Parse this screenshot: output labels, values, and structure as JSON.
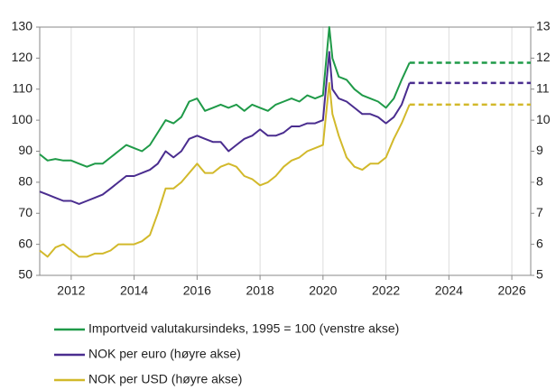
{
  "chart_data": {
    "type": "line",
    "x": [
      2011,
      2011.25,
      2011.5,
      2011.75,
      2012,
      2012.25,
      2012.5,
      2012.75,
      2013,
      2013.25,
      2013.5,
      2013.75,
      2014,
      2014.25,
      2014.5,
      2014.75,
      2015,
      2015.25,
      2015.5,
      2015.75,
      2016,
      2016.25,
      2016.5,
      2016.75,
      2017,
      2017.25,
      2017.5,
      2017.75,
      2018,
      2018.25,
      2018.5,
      2018.75,
      2019,
      2019.25,
      2019.5,
      2019.75,
      2020,
      2020.2,
      2020.3,
      2020.5,
      2020.75,
      2021,
      2021.25,
      2021.5,
      2021.75,
      2022,
      2022.25,
      2022.5,
      2022.75
    ],
    "projection_x": [
      2022.75,
      2026.6
    ],
    "series": [
      {
        "name": "Importveid valutakursindeks, 1995 = 100 (venstre akse)",
        "color": "#1f9a48",
        "axis": "y",
        "values": [
          89,
          87,
          87.5,
          87,
          87,
          86,
          85,
          86,
          86,
          88,
          90,
          92,
          91,
          90,
          92,
          96,
          100,
          99,
          101,
          106,
          107,
          103,
          104,
          105,
          104,
          105,
          103,
          105,
          104,
          103,
          105,
          106,
          107,
          106,
          108,
          107,
          108,
          130,
          120,
          114,
          113,
          110,
          108,
          107,
          106,
          104,
          107,
          113,
          118.5
        ],
        "projection_values": [
          118.5,
          118.5
        ]
      },
      {
        "name": "NOK per euro (høyre akse)",
        "color": "#4a2d8f",
        "axis": "y2",
        "values": [
          7.7,
          7.6,
          7.5,
          7.4,
          7.4,
          7.3,
          7.4,
          7.5,
          7.6,
          7.8,
          8.0,
          8.2,
          8.2,
          8.3,
          8.4,
          8.6,
          9.0,
          8.8,
          9.0,
          9.4,
          9.5,
          9.4,
          9.3,
          9.3,
          9.0,
          9.2,
          9.4,
          9.5,
          9.7,
          9.5,
          9.5,
          9.6,
          9.8,
          9.8,
          9.9,
          9.9,
          10.0,
          12.2,
          11.0,
          10.7,
          10.6,
          10.4,
          10.2,
          10.2,
          10.1,
          9.9,
          10.1,
          10.5,
          11.2
        ],
        "projection_values": [
          11.2,
          11.2
        ]
      },
      {
        "name": "NOK per USD (høyre akse)",
        "color": "#d2b92b",
        "axis": "y2",
        "values": [
          5.8,
          5.6,
          5.9,
          6.0,
          5.8,
          5.6,
          5.6,
          5.7,
          5.7,
          5.8,
          6.0,
          6.0,
          6.0,
          6.1,
          6.3,
          7.0,
          7.8,
          7.8,
          8.0,
          8.3,
          8.6,
          8.3,
          8.3,
          8.5,
          8.6,
          8.5,
          8.2,
          8.1,
          7.9,
          8.0,
          8.2,
          8.5,
          8.7,
          8.8,
          9.0,
          9.1,
          9.2,
          11.2,
          10.2,
          9.5,
          8.8,
          8.5,
          8.4,
          8.6,
          8.6,
          8.8,
          9.4,
          9.9,
          10.5
        ],
        "projection_values": [
          10.5,
          10.5
        ]
      }
    ],
    "xlim": [
      2011,
      2026.6
    ],
    "xticks": [
      2012,
      2014,
      2016,
      2018,
      2020,
      2022,
      2024,
      2026
    ],
    "ylim": [
      50,
      130
    ],
    "yticks": [
      50,
      60,
      70,
      80,
      90,
      100,
      110,
      120,
      130
    ],
    "y2lim": [
      5,
      13
    ],
    "y2ticks": [
      5,
      6,
      7,
      8,
      9,
      10,
      11,
      12,
      13
    ],
    "grid": "x"
  }
}
